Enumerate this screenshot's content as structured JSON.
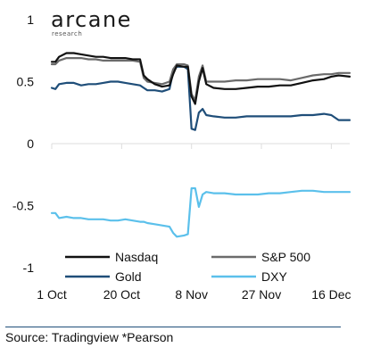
{
  "brand": {
    "name": "arcane",
    "subtitle": "research"
  },
  "source": "Source: Tradingview *Pearson",
  "chart_data": {
    "type": "line",
    "title": "",
    "xlabel": "",
    "ylabel": "",
    "ylim": [
      -1,
      1
    ],
    "yticks": [
      1,
      0.5,
      0,
      -0.5,
      -1
    ],
    "ytick_labels": [
      "1",
      "0.5",
      "0",
      "-0.5",
      "-1"
    ],
    "xlim": [
      "2021-10-01",
      "2021-12-21"
    ],
    "xticks": [
      "2021-10-01",
      "2021-10-20",
      "2021-11-08",
      "2021-11-27",
      "2021-12-16"
    ],
    "xtick_labels": [
      "1 Oct",
      "20 Oct",
      "8 Nov",
      "27 Nov",
      "16 Dec"
    ],
    "grid": false,
    "legend_position": "bottom",
    "colors": {
      "Nasdaq": "#111111",
      "S&P 500": "#6b6b6b",
      "Gold": "#1f4e79",
      "DXY": "#5bc0eb",
      "axis": "#dddddd",
      "source_rule": "#1f4e79"
    },
    "series": [
      {
        "name": "Nasdaq",
        "points": [
          [
            "2021-10-01",
            0.66
          ],
          [
            "2021-10-02",
            0.66
          ],
          [
            "2021-10-03",
            0.7
          ],
          [
            "2021-10-05",
            0.73
          ],
          [
            "2021-10-07",
            0.73
          ],
          [
            "2021-10-09",
            0.72
          ],
          [
            "2021-10-11",
            0.71
          ],
          [
            "2021-10-13",
            0.7
          ],
          [
            "2021-10-15",
            0.7
          ],
          [
            "2021-10-17",
            0.69
          ],
          [
            "2021-10-19",
            0.69
          ],
          [
            "2021-10-21",
            0.69
          ],
          [
            "2021-10-23",
            0.68
          ],
          [
            "2021-10-25",
            0.68
          ],
          [
            "2021-10-26",
            0.55
          ],
          [
            "2021-10-27",
            0.52
          ],
          [
            "2021-10-29",
            0.48
          ],
          [
            "2021-10-31",
            0.46
          ],
          [
            "2021-11-02",
            0.47
          ],
          [
            "2021-11-03",
            0.56
          ],
          [
            "2021-11-04",
            0.63
          ],
          [
            "2021-11-06",
            0.62
          ],
          [
            "2021-11-07",
            0.62
          ],
          [
            "2021-11-08",
            0.38
          ],
          [
            "2021-11-09",
            0.32
          ],
          [
            "2021-11-10",
            0.5
          ],
          [
            "2021-11-11",
            0.61
          ],
          [
            "2021-11-12",
            0.48
          ],
          [
            "2021-11-14",
            0.45
          ],
          [
            "2021-11-17",
            0.44
          ],
          [
            "2021-11-20",
            0.44
          ],
          [
            "2021-11-23",
            0.45
          ],
          [
            "2021-11-26",
            0.46
          ],
          [
            "2021-11-29",
            0.46
          ],
          [
            "2021-12-02",
            0.47
          ],
          [
            "2021-12-05",
            0.47
          ],
          [
            "2021-12-08",
            0.49
          ],
          [
            "2021-12-11",
            0.51
          ],
          [
            "2021-12-14",
            0.52
          ],
          [
            "2021-12-16",
            0.54
          ],
          [
            "2021-12-18",
            0.55
          ],
          [
            "2021-12-21",
            0.54
          ]
        ]
      },
      {
        "name": "S&P 500",
        "points": [
          [
            "2021-10-01",
            0.64
          ],
          [
            "2021-10-02",
            0.64
          ],
          [
            "2021-10-03",
            0.67
          ],
          [
            "2021-10-05",
            0.69
          ],
          [
            "2021-10-07",
            0.69
          ],
          [
            "2021-10-09",
            0.69
          ],
          [
            "2021-10-11",
            0.68
          ],
          [
            "2021-10-13",
            0.68
          ],
          [
            "2021-10-15",
            0.67
          ],
          [
            "2021-10-17",
            0.67
          ],
          [
            "2021-10-19",
            0.67
          ],
          [
            "2021-10-21",
            0.67
          ],
          [
            "2021-10-23",
            0.67
          ],
          [
            "2021-10-25",
            0.66
          ],
          [
            "2021-10-26",
            0.53
          ],
          [
            "2021-10-27",
            0.5
          ],
          [
            "2021-10-29",
            0.49
          ],
          [
            "2021-10-31",
            0.48
          ],
          [
            "2021-11-02",
            0.5
          ],
          [
            "2021-11-03",
            0.6
          ],
          [
            "2021-11-04",
            0.64
          ],
          [
            "2021-11-06",
            0.64
          ],
          [
            "2021-11-07",
            0.63
          ],
          [
            "2021-11-08",
            0.4
          ],
          [
            "2021-11-09",
            0.35
          ],
          [
            "2021-11-10",
            0.54
          ],
          [
            "2021-11-11",
            0.63
          ],
          [
            "2021-11-12",
            0.5
          ],
          [
            "2021-11-14",
            0.5
          ],
          [
            "2021-11-17",
            0.5
          ],
          [
            "2021-11-20",
            0.51
          ],
          [
            "2021-11-23",
            0.51
          ],
          [
            "2021-11-26",
            0.52
          ],
          [
            "2021-11-29",
            0.52
          ],
          [
            "2021-12-02",
            0.52
          ],
          [
            "2021-12-05",
            0.51
          ],
          [
            "2021-12-08",
            0.53
          ],
          [
            "2021-12-11",
            0.55
          ],
          [
            "2021-12-14",
            0.56
          ],
          [
            "2021-12-16",
            0.56
          ],
          [
            "2021-12-18",
            0.57
          ],
          [
            "2021-12-21",
            0.57
          ]
        ]
      },
      {
        "name": "Gold",
        "points": [
          [
            "2021-10-01",
            0.45
          ],
          [
            "2021-10-02",
            0.44
          ],
          [
            "2021-10-03",
            0.48
          ],
          [
            "2021-10-05",
            0.49
          ],
          [
            "2021-10-07",
            0.49
          ],
          [
            "2021-10-09",
            0.47
          ],
          [
            "2021-10-11",
            0.48
          ],
          [
            "2021-10-13",
            0.48
          ],
          [
            "2021-10-15",
            0.49
          ],
          [
            "2021-10-17",
            0.5
          ],
          [
            "2021-10-19",
            0.5
          ],
          [
            "2021-10-21",
            0.49
          ],
          [
            "2021-10-23",
            0.48
          ],
          [
            "2021-10-25",
            0.47
          ],
          [
            "2021-10-26",
            0.45
          ],
          [
            "2021-10-27",
            0.43
          ],
          [
            "2021-10-29",
            0.43
          ],
          [
            "2021-10-31",
            0.42
          ],
          [
            "2021-11-02",
            0.44
          ],
          [
            "2021-11-03",
            0.58
          ],
          [
            "2021-11-04",
            0.62
          ],
          [
            "2021-11-06",
            0.62
          ],
          [
            "2021-11-07",
            0.6
          ],
          [
            "2021-11-08",
            0.12
          ],
          [
            "2021-11-09",
            0.11
          ],
          [
            "2021-11-10",
            0.25
          ],
          [
            "2021-11-11",
            0.28
          ],
          [
            "2021-11-12",
            0.23
          ],
          [
            "2021-11-14",
            0.22
          ],
          [
            "2021-11-17",
            0.21
          ],
          [
            "2021-11-20",
            0.21
          ],
          [
            "2021-11-23",
            0.22
          ],
          [
            "2021-11-26",
            0.22
          ],
          [
            "2021-11-29",
            0.22
          ],
          [
            "2021-12-02",
            0.22
          ],
          [
            "2021-12-05",
            0.22
          ],
          [
            "2021-12-08",
            0.23
          ],
          [
            "2021-12-11",
            0.23
          ],
          [
            "2021-12-14",
            0.24
          ],
          [
            "2021-12-16",
            0.23
          ],
          [
            "2021-12-18",
            0.19
          ],
          [
            "2021-12-21",
            0.19
          ]
        ]
      },
      {
        "name": "DXY",
        "points": [
          [
            "2021-10-01",
            -0.56
          ],
          [
            "2021-10-02",
            -0.56
          ],
          [
            "2021-10-03",
            -0.6
          ],
          [
            "2021-10-05",
            -0.59
          ],
          [
            "2021-10-07",
            -0.6
          ],
          [
            "2021-10-09",
            -0.6
          ],
          [
            "2021-10-11",
            -0.61
          ],
          [
            "2021-10-13",
            -0.61
          ],
          [
            "2021-10-15",
            -0.61
          ],
          [
            "2021-10-17",
            -0.62
          ],
          [
            "2021-10-19",
            -0.62
          ],
          [
            "2021-10-21",
            -0.61
          ],
          [
            "2021-10-23",
            -0.62
          ],
          [
            "2021-10-25",
            -0.63
          ],
          [
            "2021-10-26",
            -0.63
          ],
          [
            "2021-10-27",
            -0.64
          ],
          [
            "2021-10-29",
            -0.65
          ],
          [
            "2021-10-31",
            -0.66
          ],
          [
            "2021-11-02",
            -0.67
          ],
          [
            "2021-11-03",
            -0.72
          ],
          [
            "2021-11-04",
            -0.75
          ],
          [
            "2021-11-06",
            -0.74
          ],
          [
            "2021-11-07",
            -0.73
          ],
          [
            "2021-11-08",
            -0.36
          ],
          [
            "2021-11-09",
            -0.36
          ],
          [
            "2021-11-10",
            -0.51
          ],
          [
            "2021-11-11",
            -0.41
          ],
          [
            "2021-11-12",
            -0.39
          ],
          [
            "2021-11-14",
            -0.4
          ],
          [
            "2021-11-17",
            -0.4
          ],
          [
            "2021-11-20",
            -0.41
          ],
          [
            "2021-11-23",
            -0.41
          ],
          [
            "2021-11-26",
            -0.41
          ],
          [
            "2021-11-29",
            -0.4
          ],
          [
            "2021-12-02",
            -0.4
          ],
          [
            "2021-12-05",
            -0.39
          ],
          [
            "2021-12-08",
            -0.38
          ],
          [
            "2021-12-11",
            -0.38
          ],
          [
            "2021-12-14",
            -0.39
          ],
          [
            "2021-12-16",
            -0.39
          ],
          [
            "2021-12-18",
            -0.39
          ],
          [
            "2021-12-21",
            -0.39
          ]
        ]
      }
    ]
  }
}
